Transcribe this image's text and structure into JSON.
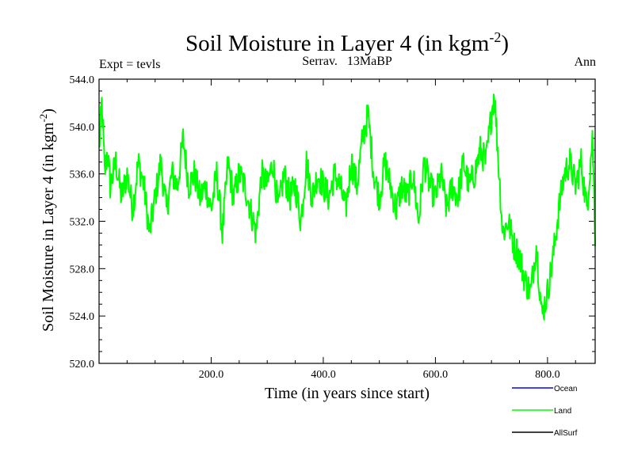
{
  "chart_data": {
    "type": "line",
    "title": "Soil Moisture in Layer 4 (in kgm",
    "title_sup": "-2",
    "title_end": ")",
    "subtitle_left": "Expt = tevls",
    "subtitle_center": "Serrav.   13MaBP",
    "subtitle_right": "Ann",
    "xlabel": "Time (in years since start)",
    "ylabel": "Soil Moisture in Layer 4 (in kgm",
    "ylabel_sup": "-2",
    "ylabel_end": ")",
    "xlim": [
      0,
      885
    ],
    "ylim": [
      520.0,
      544.0
    ],
    "x_ticks": [
      200,
      400,
      600,
      800
    ],
    "x_tick_labels": [
      "200.0",
      "400.0",
      "600.0",
      "800.0"
    ],
    "y_ticks": [
      520,
      524,
      528,
      532,
      536,
      540,
      544
    ],
    "y_tick_labels": [
      "520.0",
      "524.0",
      "528.0",
      "532.0",
      "536.0",
      "540.0",
      "544.0"
    ],
    "legend": [
      {
        "name": "Ocean",
        "color": "#0000ff"
      },
      {
        "name": "Land",
        "color": "#00ff00"
      },
      {
        "name": "AllSurf",
        "color": "#000000"
      }
    ],
    "series": [
      {
        "name": "Land",
        "color": "#00ff00",
        "x": [
          0,
          5,
          10,
          15,
          20,
          30,
          40,
          50,
          60,
          70,
          80,
          90,
          100,
          110,
          120,
          130,
          140,
          150,
          160,
          170,
          180,
          190,
          200,
          210,
          220,
          230,
          240,
          250,
          260,
          270,
          280,
          290,
          300,
          310,
          320,
          330,
          340,
          350,
          360,
          370,
          380,
          390,
          400,
          410,
          420,
          430,
          440,
          450,
          460,
          470,
          480,
          490,
          500,
          510,
          520,
          530,
          540,
          550,
          560,
          570,
          580,
          590,
          600,
          610,
          620,
          630,
          640,
          650,
          660,
          670,
          680,
          690,
          700,
          705,
          710,
          715,
          720,
          730,
          740,
          750,
          760,
          770,
          780,
          790,
          800,
          810,
          820,
          830,
          840,
          850,
          860,
          870,
          880,
          885
        ],
        "values": [
          538,
          542,
          536,
          538,
          535,
          537,
          534,
          536,
          533,
          537,
          535,
          531,
          534,
          537,
          533,
          536,
          535,
          539,
          535,
          536,
          534,
          535,
          533,
          536,
          531,
          537,
          534,
          536,
          535,
          533,
          531,
          536,
          535,
          537,
          533,
          536,
          534,
          535,
          532,
          537,
          534,
          536,
          535,
          534,
          536,
          535,
          533,
          537,
          535,
          539,
          541,
          536,
          534,
          537,
          535,
          533,
          535,
          534,
          536,
          532,
          537,
          535,
          534,
          536,
          533,
          535,
          534,
          537,
          535,
          536,
          538,
          537,
          541,
          543,
          539,
          535,
          531,
          532,
          530,
          529,
          527,
          526,
          530,
          524,
          526,
          529,
          533,
          536,
          537,
          535,
          537,
          533,
          539,
          531
        ]
      }
    ]
  }
}
